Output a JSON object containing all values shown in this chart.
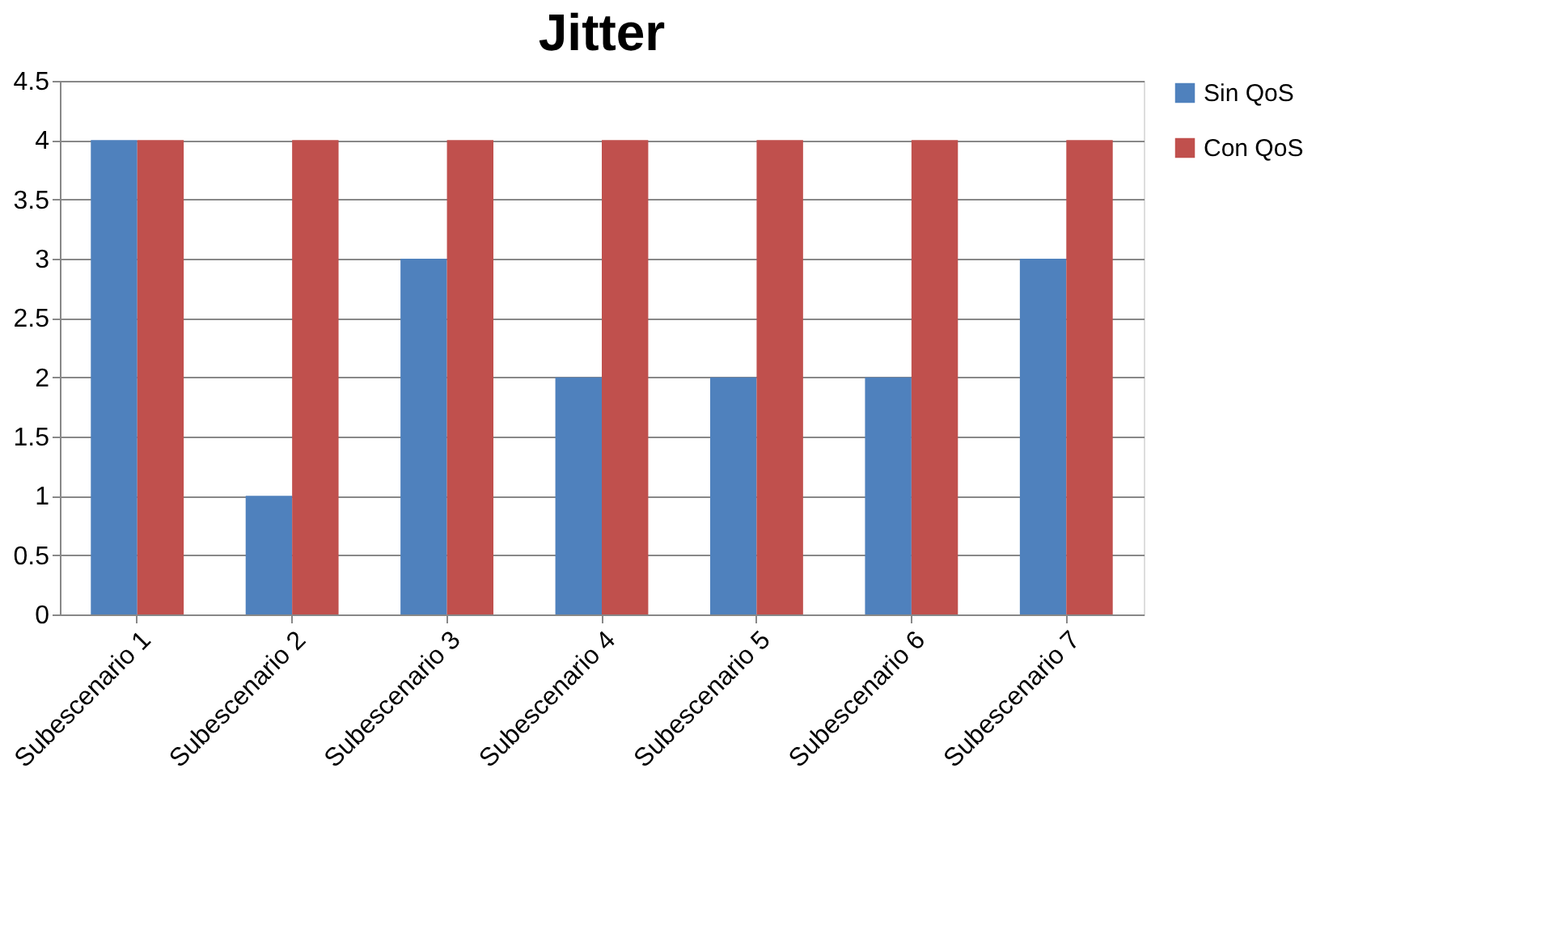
{
  "chart_data": {
    "type": "bar",
    "title": "Jitter",
    "categories": [
      "Subescenario 1",
      "Subescenario 2",
      "Subescenario 3",
      "Subescenario 4",
      "Subescenario 5",
      "Subescenario 6",
      "Subescenario 7"
    ],
    "series": [
      {
        "name": "Sin QoS",
        "color": "#4f81bd",
        "values": [
          4,
          1,
          3,
          2,
          2,
          2,
          3
        ]
      },
      {
        "name": "Con QoS",
        "color": "#c0504d",
        "values": [
          4,
          4,
          4,
          4,
          4,
          4,
          4
        ]
      }
    ],
    "ylim": [
      0,
      4.5
    ],
    "yticks": [
      0,
      0.5,
      1,
      1.5,
      2,
      2.5,
      3,
      3.5,
      4,
      4.5
    ],
    "grid": "y",
    "legend": "right"
  }
}
